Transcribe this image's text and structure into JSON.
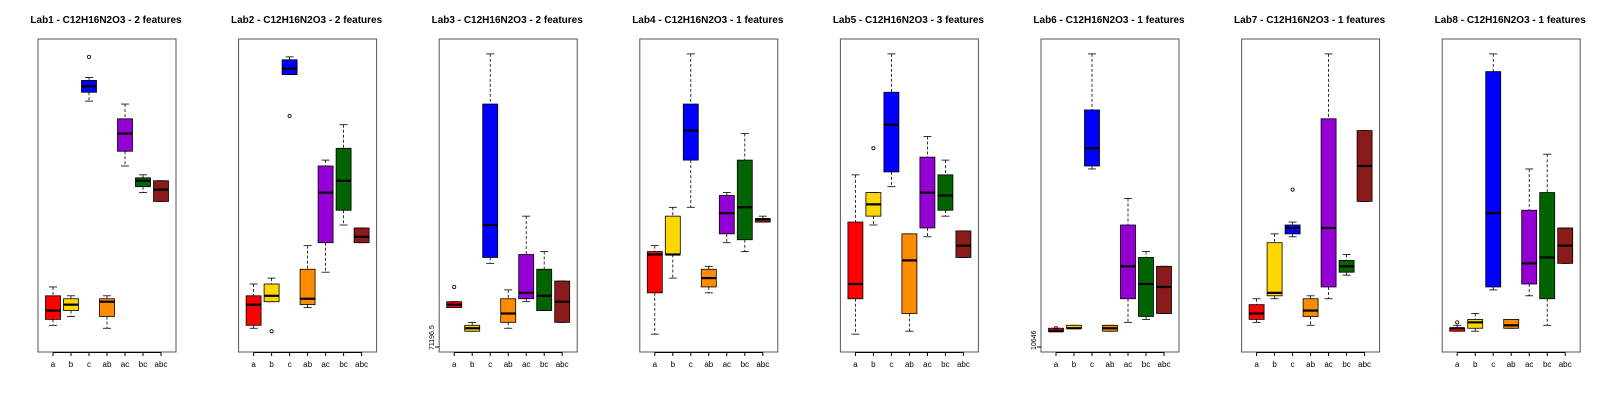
{
  "colors": {
    "a": "#ff0000",
    "b": "#ffd700",
    "c": "#0000ff",
    "ab": "#ff8c00",
    "ac": "#9400d3",
    "bc": "#006400",
    "abc": "#8b1a1a"
  },
  "chart_data": [
    {
      "type": "box",
      "title": "Lab1 - C12H16N2O3 - 2 features",
      "categories": [
        "a",
        "b",
        "c",
        "ab",
        "ac",
        "bc",
        "abc"
      ],
      "ylim": [
        0,
        100
      ],
      "y_tick": null,
      "boxes": [
        {
          "cat": "a",
          "min": 6,
          "q1": 8,
          "median": 11,
          "q3": 16,
          "max": 19,
          "outliers": []
        },
        {
          "cat": "b",
          "min": 9,
          "q1": 11,
          "median": 13,
          "q3": 15,
          "max": 16,
          "outliers": []
        },
        {
          "cat": "c",
          "min": 82,
          "q1": 85,
          "median": 87,
          "q3": 89,
          "max": 90,
          "outliers": [
            97
          ]
        },
        {
          "cat": "ab",
          "min": 5,
          "q1": 9,
          "median": 14,
          "q3": 15,
          "max": 16,
          "outliers": []
        },
        {
          "cat": "ac",
          "min": 60,
          "q1": 65,
          "median": 71,
          "q3": 76,
          "max": 81,
          "outliers": []
        },
        {
          "cat": "bc",
          "min": 51,
          "q1": 53,
          "median": 55,
          "q3": 56,
          "max": 57,
          "outliers": []
        },
        {
          "cat": "abc",
          "min": 48,
          "q1": 48,
          "median": 52,
          "q3": 55,
          "max": 55,
          "outliers": []
        }
      ]
    },
    {
      "type": "box",
      "title": "Lab2 - C12H16N2O3 - 2 features",
      "categories": [
        "a",
        "b",
        "c",
        "ab",
        "ac",
        "bc",
        "abc"
      ],
      "ylim": [
        0,
        100
      ],
      "y_tick": null,
      "boxes": [
        {
          "cat": "a",
          "min": 5,
          "q1": 6,
          "median": 13,
          "q3": 16,
          "max": 20,
          "outliers": []
        },
        {
          "cat": "b",
          "min": 14,
          "q1": 14,
          "median": 16,
          "q3": 20,
          "max": 22,
          "outliers": [
            4
          ]
        },
        {
          "cat": "c",
          "min": 91,
          "q1": 91,
          "median": 93,
          "q3": 96,
          "max": 97,
          "outliers": [
            77
          ]
        },
        {
          "cat": "ab",
          "min": 12,
          "q1": 13,
          "median": 15,
          "q3": 25,
          "max": 33,
          "outliers": []
        },
        {
          "cat": "ac",
          "min": 24,
          "q1": 34,
          "median": 51,
          "q3": 60,
          "max": 62,
          "outliers": []
        },
        {
          "cat": "bc",
          "min": 40,
          "q1": 45,
          "median": 55,
          "q3": 66,
          "max": 74,
          "outliers": []
        },
        {
          "cat": "abc",
          "min": 34,
          "q1": 34,
          "median": 36,
          "q3": 39,
          "max": 39,
          "outliers": []
        }
      ]
    },
    {
      "type": "box",
      "title": "Lab3 - C12H16N2O3 - 2 features",
      "categories": [
        "a",
        "b",
        "c",
        "ab",
        "ac",
        "bc",
        "abc"
      ],
      "ylim": [
        0,
        100
      ],
      "y_tick": "71196.5",
      "boxes": [
        {
          "cat": "a",
          "min": 12,
          "q1": 12,
          "median": 13,
          "q3": 14,
          "max": 14,
          "outliers": [
            19
          ]
        },
        {
          "cat": "b",
          "min": 4,
          "q1": 4,
          "median": 5,
          "q3": 6,
          "max": 7,
          "outliers": []
        },
        {
          "cat": "c",
          "min": 27,
          "q1": 29,
          "median": 40,
          "q3": 81,
          "max": 98,
          "outliers": []
        },
        {
          "cat": "ab",
          "min": 5,
          "q1": 7,
          "median": 10,
          "q3": 15,
          "max": 18,
          "outliers": []
        },
        {
          "cat": "ac",
          "min": 14,
          "q1": 15,
          "median": 17,
          "q3": 30,
          "max": 43,
          "outliers": []
        },
        {
          "cat": "bc",
          "min": 11,
          "q1": 11,
          "median": 16,
          "q3": 25,
          "max": 31,
          "outliers": []
        },
        {
          "cat": "abc",
          "min": 7,
          "q1": 7,
          "median": 14,
          "q3": 21,
          "max": 21,
          "outliers": []
        }
      ]
    },
    {
      "type": "box",
      "title": "Lab4 - C12H16N2O3 - 1 features",
      "categories": [
        "a",
        "b",
        "c",
        "ab",
        "ac",
        "bc",
        "abc"
      ],
      "ylim": [
        0,
        100
      ],
      "y_tick": null,
      "boxes": [
        {
          "cat": "a",
          "min": 3,
          "q1": 17,
          "median": 30,
          "q3": 31,
          "max": 33,
          "outliers": []
        },
        {
          "cat": "b",
          "min": 22,
          "q1": 30,
          "median": 30,
          "q3": 43,
          "max": 46,
          "outliers": []
        },
        {
          "cat": "c",
          "min": 46,
          "q1": 62,
          "median": 72,
          "q3": 81,
          "max": 98,
          "outliers": []
        },
        {
          "cat": "ab",
          "min": 17,
          "q1": 19,
          "median": 22,
          "q3": 25,
          "max": 26,
          "outliers": []
        },
        {
          "cat": "ac",
          "min": 34,
          "q1": 37,
          "median": 44,
          "q3": 50,
          "max": 51,
          "outliers": []
        },
        {
          "cat": "bc",
          "min": 31,
          "q1": 35,
          "median": 46,
          "q3": 62,
          "max": 71,
          "outliers": []
        },
        {
          "cat": "abc",
          "min": 41,
          "q1": 41,
          "median": 42,
          "q3": 42,
          "max": 43,
          "outliers": []
        }
      ]
    },
    {
      "type": "box",
      "title": "Lab5 - C12H16N2O3 - 3 features",
      "categories": [
        "a",
        "b",
        "c",
        "ab",
        "ac",
        "bc",
        "abc"
      ],
      "ylim": [
        0,
        100
      ],
      "y_tick": null,
      "boxes": [
        {
          "cat": "a",
          "min": 3,
          "q1": 15,
          "median": 20,
          "q3": 41,
          "max": 57,
          "outliers": []
        },
        {
          "cat": "b",
          "min": 40,
          "q1": 43,
          "median": 47,
          "q3": 51,
          "max": 51,
          "outliers": [
            66
          ]
        },
        {
          "cat": "c",
          "min": 53,
          "q1": 58,
          "median": 74,
          "q3": 85,
          "max": 98,
          "outliers": []
        },
        {
          "cat": "ab",
          "min": 4,
          "q1": 10,
          "median": 28,
          "q3": 37,
          "max": 37,
          "outliers": []
        },
        {
          "cat": "ac",
          "min": 36,
          "q1": 39,
          "median": 51,
          "q3": 63,
          "max": 70,
          "outliers": []
        },
        {
          "cat": "bc",
          "min": 43,
          "q1": 45,
          "median": 50,
          "q3": 57,
          "max": 62,
          "outliers": []
        },
        {
          "cat": "abc",
          "min": 29,
          "q1": 29,
          "median": 33,
          "q3": 38,
          "max": 38,
          "outliers": []
        }
      ]
    },
    {
      "type": "box",
      "title": "Lab6 - C12H16N2O3 - 1 features",
      "categories": [
        "a",
        "b",
        "c",
        "ab",
        "ac",
        "bc",
        "abc"
      ],
      "ylim": [
        0,
        100
      ],
      "y_tick": "10646",
      "boxes": [
        {
          "cat": "a",
          "min": 4,
          "q1": 4,
          "median": 4,
          "q3": 5,
          "max": 5,
          "outliers": [
            5
          ]
        },
        {
          "cat": "b",
          "min": 5,
          "q1": 5,
          "median": 5,
          "q3": 6,
          "max": 6,
          "outliers": []
        },
        {
          "cat": "c",
          "min": 59,
          "q1": 60,
          "median": 66,
          "q3": 79,
          "max": 98,
          "outliers": []
        },
        {
          "cat": "ab",
          "min": 4,
          "q1": 4,
          "median": 5,
          "q3": 6,
          "max": 6,
          "outliers": []
        },
        {
          "cat": "ac",
          "min": 7,
          "q1": 15,
          "median": 26,
          "q3": 40,
          "max": 49,
          "outliers": []
        },
        {
          "cat": "bc",
          "min": 8,
          "q1": 9,
          "median": 20,
          "q3": 29,
          "max": 31,
          "outliers": []
        },
        {
          "cat": "abc",
          "min": 10,
          "q1": 10,
          "median": 19,
          "q3": 26,
          "max": 26,
          "outliers": []
        }
      ]
    },
    {
      "type": "box",
      "title": "Lab7 - C12H16N2O3 - 1 features",
      "categories": [
        "a",
        "b",
        "c",
        "ab",
        "ac",
        "bc",
        "abc"
      ],
      "ylim": [
        0,
        100
      ],
      "y_tick": null,
      "boxes": [
        {
          "cat": "a",
          "min": 7,
          "q1": 8,
          "median": 10,
          "q3": 13,
          "max": 15,
          "outliers": []
        },
        {
          "cat": "b",
          "min": 15,
          "q1": 16,
          "median": 17,
          "q3": 34,
          "max": 37,
          "outliers": []
        },
        {
          "cat": "c",
          "min": 36,
          "q1": 37,
          "median": 39,
          "q3": 40,
          "max": 41,
          "outliers": [
            52
          ]
        },
        {
          "cat": "ab",
          "min": 6,
          "q1": 9,
          "median": 11,
          "q3": 15,
          "max": 16,
          "outliers": []
        },
        {
          "cat": "ac",
          "min": 15,
          "q1": 19,
          "median": 39,
          "q3": 76,
          "max": 98,
          "outliers": []
        },
        {
          "cat": "bc",
          "min": 23,
          "q1": 24,
          "median": 26,
          "q3": 28,
          "max": 30,
          "outliers": []
        },
        {
          "cat": "abc",
          "min": 48,
          "q1": 48,
          "median": 60,
          "q3": 72,
          "max": 72,
          "outliers": []
        }
      ]
    },
    {
      "type": "box",
      "title": "Lab8 - C12H16N2O3 - 1 features",
      "categories": [
        "a",
        "b",
        "c",
        "ab",
        "ac",
        "bc",
        "abc"
      ],
      "ylim": [
        0,
        100
      ],
      "y_tick": null,
      "boxes": [
        {
          "cat": "a",
          "min": 4,
          "q1": 4,
          "median": 5,
          "q3": 5,
          "max": 6,
          "outliers": [
            7
          ]
        },
        {
          "cat": "b",
          "min": 4,
          "q1": 5,
          "median": 7,
          "q3": 8,
          "max": 10,
          "outliers": []
        },
        {
          "cat": "c",
          "min": 18,
          "q1": 19,
          "median": 44,
          "q3": 92,
          "max": 98,
          "outliers": []
        },
        {
          "cat": "ab",
          "min": 5,
          "q1": 5,
          "median": 6,
          "q3": 8,
          "max": 8,
          "outliers": []
        },
        {
          "cat": "ac",
          "min": 16,
          "q1": 20,
          "median": 27,
          "q3": 45,
          "max": 59,
          "outliers": []
        },
        {
          "cat": "bc",
          "min": 6,
          "q1": 15,
          "median": 29,
          "q3": 51,
          "max": 64,
          "outliers": []
        },
        {
          "cat": "abc",
          "min": 27,
          "q1": 27,
          "median": 33,
          "q3": 39,
          "max": 39,
          "outliers": []
        }
      ]
    }
  ]
}
